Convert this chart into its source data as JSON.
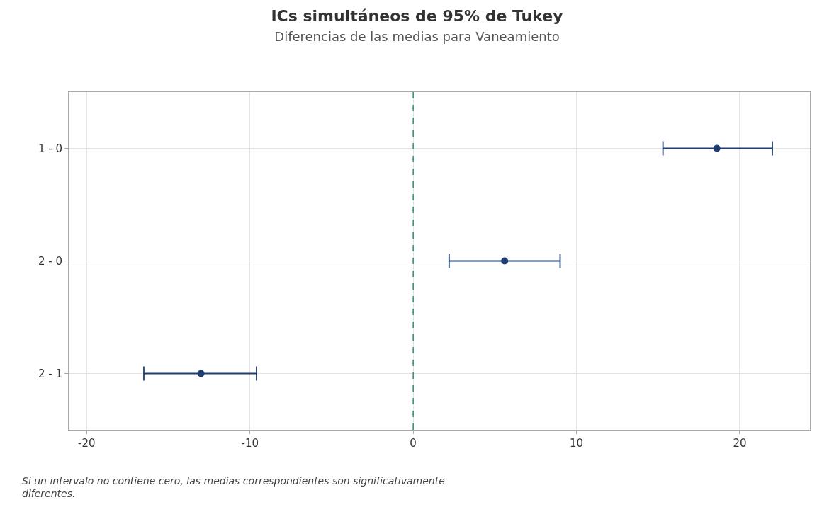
{
  "chart_data": {
    "type": "scatter",
    "orientation": "horizontal",
    "title": "ICs simultáneos de 95% de Tukey",
    "subtitle": "Diferencias de las medias para Vaneamiento",
    "categories": [
      "1 - 0",
      "2 - 0",
      "2 - 1"
    ],
    "series": [
      {
        "color": "#1f3f73",
        "values": [
          18.6,
          5.6,
          -13.0
        ],
        "errors": [
          [
            15.3,
            22.0
          ],
          [
            2.2,
            9.0
          ],
          [
            -16.5,
            -9.6
          ]
        ]
      }
    ],
    "xlim": [
      -21.1,
      24.3
    ],
    "xticks": [
      -20,
      -10,
      0,
      10,
      20
    ],
    "grid": true,
    "marker": "circle",
    "ref_lines": [
      {
        "axis": "x",
        "value": 0,
        "color": "#2e8b7a",
        "line_style": "dashed"
      }
    ],
    "annotations": [
      "Si un intervalo no contiene cero, las medias correspondientes son significativamente diferentes."
    ]
  }
}
